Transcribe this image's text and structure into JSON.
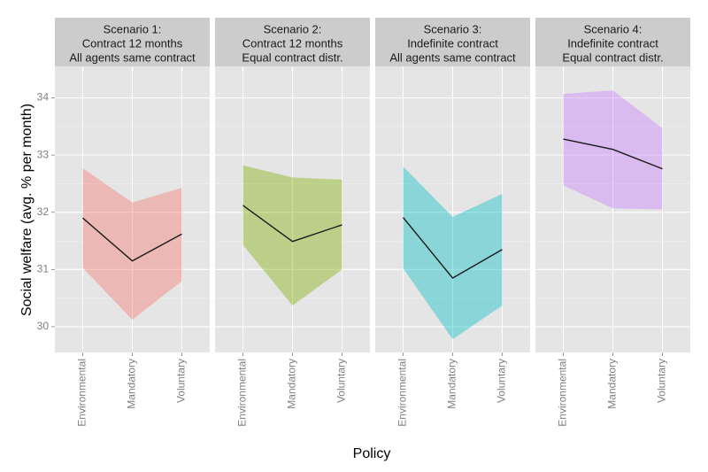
{
  "chart_data": {
    "type": "area",
    "xlabel": "Policy",
    "ylabel": "Social welfare (avg. % per month)",
    "categories": [
      "Environmental",
      "Mandatory",
      "Voluntary"
    ],
    "ylim": [
      29.55,
      34.55
    ],
    "yticks": [
      "30",
      "31",
      "32",
      "33",
      "34"
    ],
    "grid": true,
    "legend": "none",
    "panels": [
      {
        "strip": [
          "Scenario 1:",
          "Contract 12 months",
          "All agents same contract"
        ],
        "color": "#f8766d",
        "mean": [
          31.9,
          31.15,
          31.62
        ],
        "lower": [
          31.03,
          30.12,
          30.8
        ],
        "upper": [
          32.77,
          32.17,
          32.43
        ]
      },
      {
        "strip": [
          "Scenario 2:",
          "Contract 12 months",
          "Equal contract distr."
        ],
        "color": "#7cae00",
        "mean": [
          32.12,
          31.49,
          31.78
        ],
        "lower": [
          31.43,
          30.37,
          31.0
        ],
        "upper": [
          32.82,
          32.61,
          32.57
        ]
      },
      {
        "strip": [
          "Scenario 3:",
          "Indefinite contract",
          "All agents same contract"
        ],
        "color": "#00bfc4",
        "mean": [
          31.91,
          30.85,
          31.35
        ],
        "lower": [
          31.02,
          29.78,
          30.37
        ],
        "upper": [
          32.8,
          31.92,
          32.32
        ]
      },
      {
        "strip": [
          "Scenario 4:",
          "Indefinite contract",
          "Equal contract distr."
        ],
        "color": "#c77cff",
        "mean": [
          33.28,
          33.1,
          32.76
        ],
        "lower": [
          32.47,
          32.07,
          32.05
        ],
        "upper": [
          34.07,
          34.13,
          33.47
        ]
      }
    ]
  }
}
